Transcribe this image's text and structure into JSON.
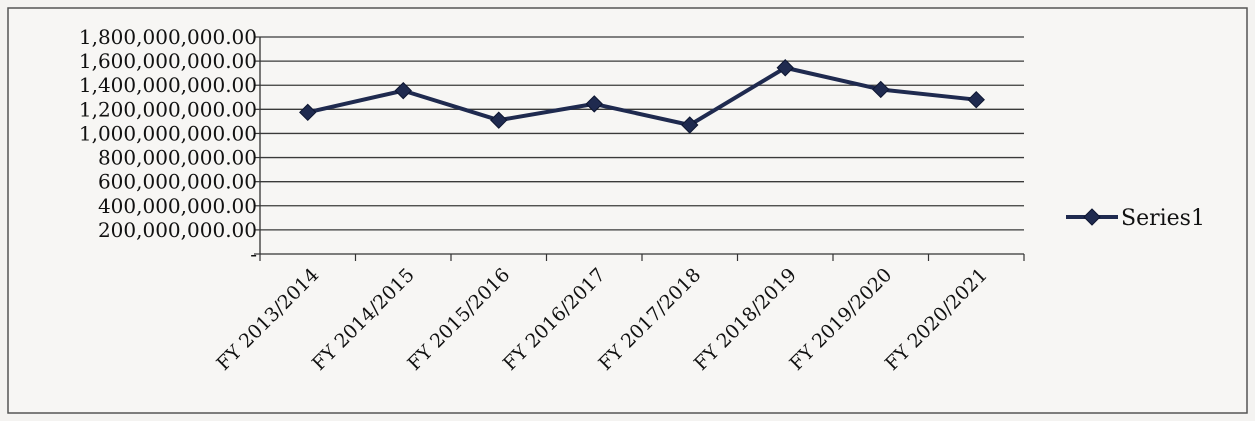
{
  "chart_data": {
    "type": "line",
    "title": "",
    "xlabel": "",
    "ylabel": "",
    "categories": [
      "FY 2013/2014",
      "FY 2014/2015",
      "FY 2015/2016",
      "FY 2016/2017",
      "FY 2017/2018",
      "FY 2018/2019",
      "FY 2019/2020",
      "FY 2020/2021"
    ],
    "series": [
      {
        "name": "Series1",
        "values": [
          1175000000,
          1355000000,
          1110000000,
          1245000000,
          1070000000,
          1545000000,
          1365000000,
          1280000000
        ]
      }
    ],
    "ylim": [
      0,
      1800000000
    ],
    "yticks": [
      0,
      200000000,
      400000000,
      600000000,
      800000000,
      1000000000,
      1200000000,
      1400000000,
      1600000000,
      1800000000
    ],
    "ytick_labels": [
      "-",
      "200,000,000.00",
      "400,000,000.00",
      "600,000,000.00",
      "800,000,000.00",
      "1,000,000,000.00",
      "1,200,000,000.00",
      "1,400,000,000.00",
      "1,600,000,000.00",
      "1,800,000,000.00"
    ],
    "grid": true,
    "legend_position": "right",
    "line_color": "#1f2a4f",
    "marker_color": "#1f2a4f",
    "marker": "diamond"
  }
}
